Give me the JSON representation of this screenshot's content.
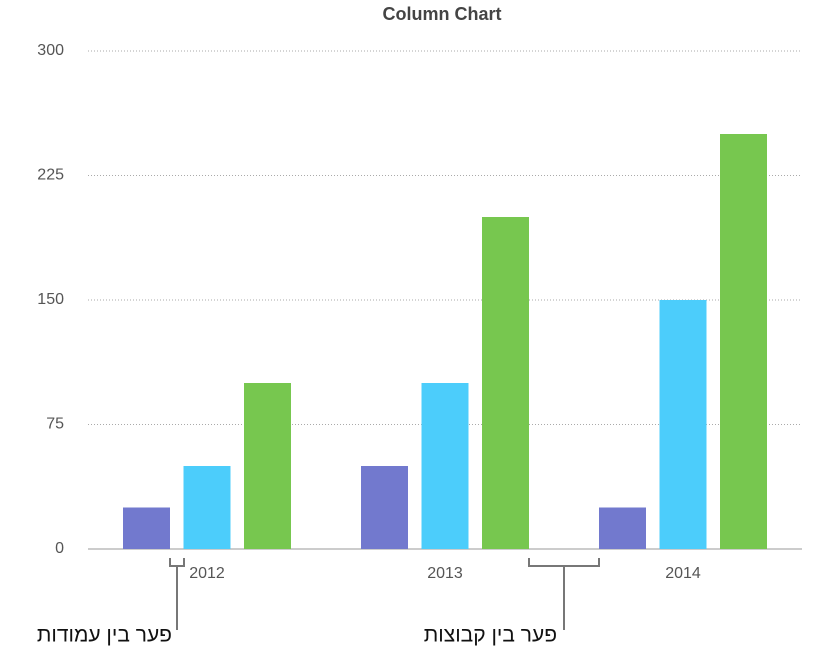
{
  "chart_data": {
    "type": "bar",
    "title": "Column Chart",
    "categories": [
      "2012",
      "2013",
      "2014"
    ],
    "series": [
      {
        "color": "#7279ce",
        "values": [
          25,
          50,
          25
        ]
      },
      {
        "color": "#4ccdfb",
        "values": [
          50,
          100,
          150
        ]
      },
      {
        "color": "#77c74f",
        "values": [
          100,
          200,
          250
        ]
      }
    ],
    "ylim": [
      0,
      300
    ],
    "yticks": [
      0,
      75,
      150,
      225,
      300
    ],
    "grid": true,
    "annotations": [
      "פער בין עמודות",
      "פער בין קבוצות"
    ]
  }
}
